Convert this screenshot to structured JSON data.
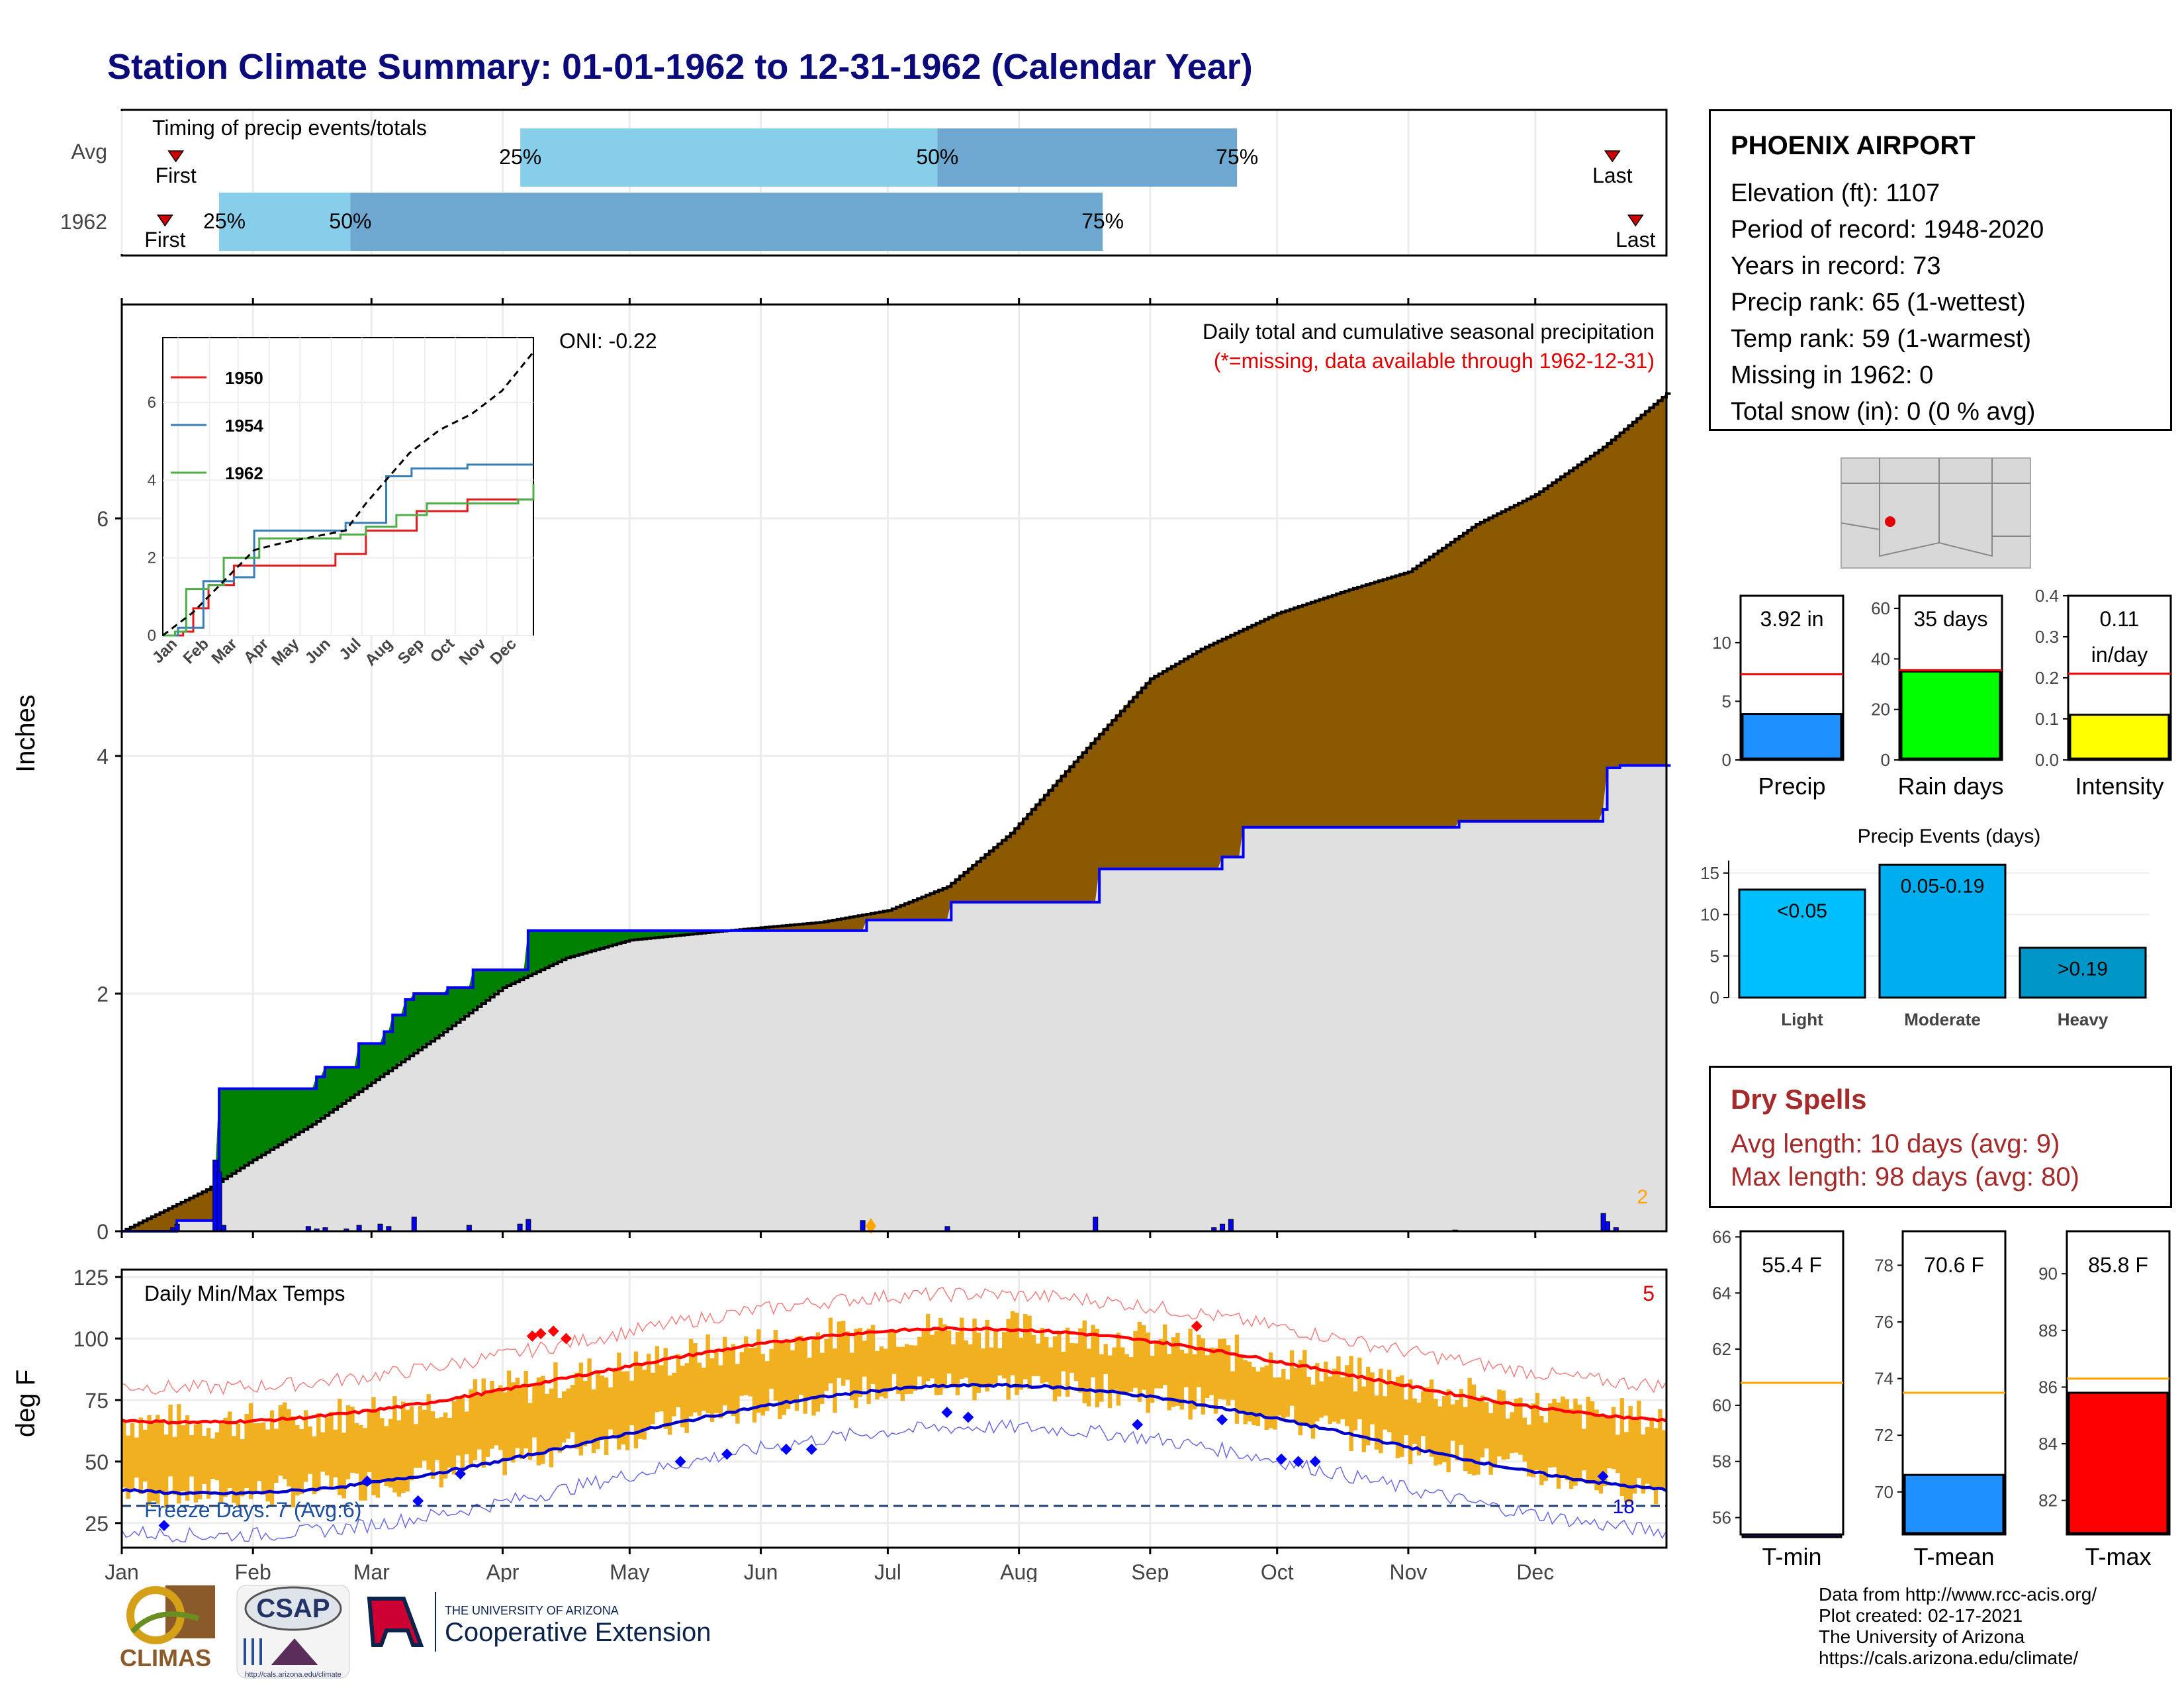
{
  "title": "Station Climate Summary: 01-01-1962 to 12-31-1962 (Calendar Year)",
  "timing": {
    "label": "Timing of precip events/totals",
    "rows": [
      {
        "name": "Avg",
        "first_label": "First",
        "last_label": "Last",
        "p25_label": "25%",
        "p50_label": "50%",
        "p75_label": "75%",
        "first": 0.035,
        "p25": 0.258,
        "p50": 0.528,
        "p75": 0.722,
        "last": 0.965
      },
      {
        "name": "1962",
        "first_label": "First",
        "last_label": "Last",
        "p25_label": "25%",
        "p50_label": "50%",
        "p75_label": "75%",
        "first": 0.028,
        "p25": 0.063,
        "p50": 0.148,
        "p75": 0.635,
        "last": 0.98
      }
    ]
  },
  "precip_chart": {
    "ylabel": "Inches",
    "oni_label": "ONI: -0.22",
    "title": "Daily total and cumulative seasonal precipitation",
    "subtitle": "(*=missing, data available through 1962-12-31)",
    "corner_count": "2",
    "yticks": [
      "0",
      "2",
      "4",
      "6"
    ],
    "ylim": [
      0,
      7.8
    ],
    "colors": {
      "normal_above": "#8b5a00",
      "obs_above": "#008000",
      "fill": "#e0e0e0",
      "obs_line": "#0000ff"
    }
  },
  "inset": {
    "yticks": [
      "0",
      "2",
      "4",
      "6"
    ],
    "months": [
      "Jan",
      "Feb",
      "Mar",
      "Apr",
      "May",
      "Jun",
      "Jul",
      "Aug",
      "Sep",
      "Oct",
      "Nov",
      "Dec"
    ],
    "series": [
      {
        "name": "1950",
        "color": "#e41a1c"
      },
      {
        "name": "1954",
        "color": "#377eb8"
      },
      {
        "name": "1962",
        "color": "#4daf4a"
      }
    ]
  },
  "temp_chart": {
    "ylabel": "deg F",
    "title": "Daily Min/Max Temps",
    "corner_count": "5",
    "freeze_label": "Freeze Days: 7 (Avg:6)",
    "freeze_count": "18",
    "yticks": [
      "25",
      "50",
      "75",
      "100",
      "125"
    ],
    "months": [
      "Jan",
      "Feb",
      "Mar",
      "Apr",
      "May",
      "Jun",
      "Jul",
      "Aug",
      "Sep",
      "Oct",
      "Nov",
      "Dec"
    ]
  },
  "station": {
    "name": "PHOENIX AIRPORT",
    "elevation": "Elevation (ft): 1107",
    "period": "Period of record: 1948-2020",
    "years": "Years in record: 73",
    "precip_rank": "Precip rank: 65 (1-wettest)",
    "temp_rank": "Temp rank: 59 (1-warmest)",
    "missing": "Missing in 1962: 0",
    "snow": "Total snow (in): 0 (0 % avg)"
  },
  "summary_bars": [
    {
      "label": "Precip",
      "value_label": "3.92 in",
      "value": 3.92,
      "avg": 7.3,
      "ymax": 14,
      "yticks": [
        "0",
        "5",
        "10"
      ],
      "tickvals": [
        0,
        5,
        10
      ],
      "color": "#1e90ff"
    },
    {
      "label": "Rain days",
      "value_label": "35 days",
      "value": 35,
      "avg": 35.5,
      "ymax": 65,
      "yticks": [
        "0",
        "20",
        "40",
        "60"
      ],
      "tickvals": [
        0,
        20,
        40,
        60
      ],
      "color": "#00ff00"
    },
    {
      "label": "Intensity",
      "value_label": "0.11",
      "value_label2": "in/day",
      "value": 0.11,
      "avg": 0.21,
      "ymax": 0.4,
      "yticks": [
        "0.0",
        "0.1",
        "0.2",
        "0.3",
        "0.4"
      ],
      "tickvals": [
        0,
        0.1,
        0.2,
        0.3,
        0.4
      ],
      "color": "#ffff00"
    }
  ],
  "events": {
    "title": "Precip Events (days)",
    "yticks": [
      "0",
      "5",
      "10",
      "15"
    ],
    "bars": [
      {
        "label": "Light",
        "value_label": "<0.05",
        "value": 13,
        "color": "#00bfff"
      },
      {
        "label": "Moderate",
        "value_label": "0.05-0.19",
        "value": 16,
        "color": "#00aeef"
      },
      {
        "label": "Heavy",
        "value_label": ">0.19",
        "value": 6,
        "color": "#0096c8"
      }
    ]
  },
  "dry_spells": {
    "title": "Dry Spells",
    "avg": "Avg length: 10 days (avg: 9)",
    "max": "Max length: 98 days (avg: 80)"
  },
  "temp_bars": [
    {
      "label": "T-min",
      "value_label": "55.4 F",
      "value": 55.4,
      "avg": 60.8,
      "ymin": 55.4,
      "ymax": 66.2,
      "yticks": [
        "56",
        "58",
        "60",
        "62",
        "64",
        "66"
      ],
      "tickvals": [
        56,
        58,
        60,
        62,
        64,
        66
      ],
      "color": "#1e1e8c"
    },
    {
      "label": "T-mean",
      "value_label": "70.6 F",
      "value": 70.6,
      "avg": 73.5,
      "ymin": 68.5,
      "ymax": 79.2,
      "yticks": [
        "70",
        "72",
        "74",
        "76",
        "78"
      ],
      "tickvals": [
        70,
        72,
        74,
        76,
        78
      ],
      "color": "#1e90ff"
    },
    {
      "label": "T-max",
      "value_label": "85.8 F",
      "value": 85.8,
      "avg": 86.3,
      "ymin": 80.8,
      "ymax": 91.5,
      "yticks": [
        "82",
        "84",
        "86",
        "88",
        "90"
      ],
      "tickvals": [
        82,
        84,
        86,
        88,
        90
      ],
      "color": "#ff0000"
    }
  ],
  "footer": {
    "line1": "Data from http://www.rcc-acis.org/",
    "line2": "Plot created: 02-17-2021",
    "line3": "The University of Arizona",
    "line4": "https://cals.arizona.edu/climate/",
    "climas": "CLIMAS",
    "csap": "CSAP",
    "csap_url": "http://cals.arizona.edu/climate",
    "ua_small": "THE UNIVERSITY OF ARIZONA",
    "ua_big": "Cooperative Extension"
  }
}
